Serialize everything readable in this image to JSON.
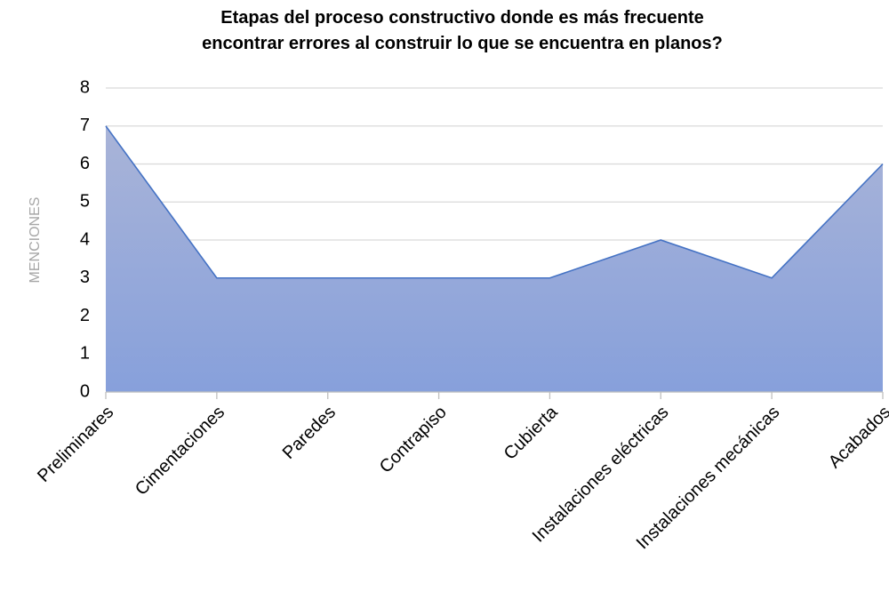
{
  "chart_data": {
    "type": "area",
    "title": [
      "Etapas del proceso constructivo donde es más frecuente",
      "encontrar errores al construir lo que se encuentra en planos?"
    ],
    "y_label": "MENCIONES",
    "categories": [
      "Preliminares",
      "Cimentaciones",
      "Paredes",
      "Contrapiso",
      "Cubierta",
      "Instalaciones eléctricas",
      "Instalaciones mecánicas",
      "Acabados"
    ],
    "series": [
      {
        "name": "MENCIONES",
        "color": "#4472c4",
        "values": [
          7,
          3,
          3,
          3,
          3,
          4,
          3,
          6
        ]
      }
    ],
    "ylim": [
      0,
      8
    ],
    "yticks": [
      0,
      1,
      2,
      3,
      4,
      5,
      6,
      7,
      8
    ],
    "grid": true
  }
}
